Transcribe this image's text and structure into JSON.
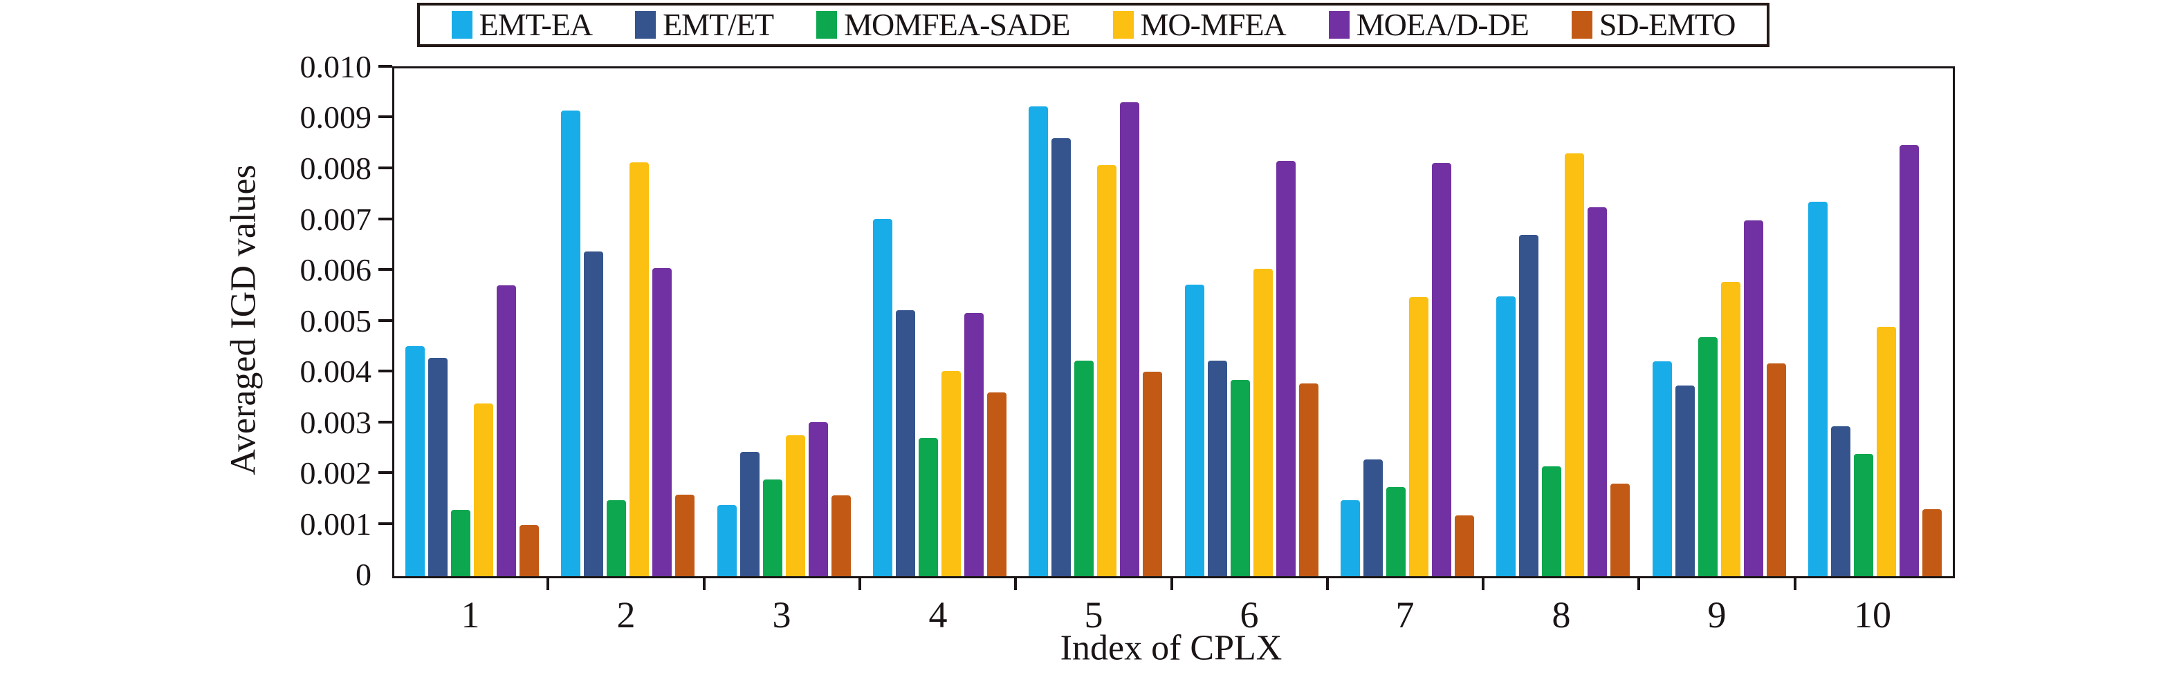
{
  "chart_data": {
    "type": "bar",
    "title": "",
    "xlabel": "Index of CPLX",
    "ylabel": "Averaged IGD values",
    "categories": [
      "1",
      "2",
      "3",
      "4",
      "5",
      "6",
      "7",
      "8",
      "9",
      "10"
    ],
    "series": [
      {
        "name": "EMT-EA",
        "color": "#18ACE8",
        "values": [
          0.00453,
          0.00917,
          0.0014,
          0.00704,
          0.00925,
          0.00574,
          0.0015,
          0.00551,
          0.00423,
          0.00738
        ]
      },
      {
        "name": "EMT/ET",
        "color": "#35548E",
        "values": [
          0.0043,
          0.0064,
          0.00245,
          0.00524,
          0.00862,
          0.00425,
          0.0023,
          0.00672,
          0.00375,
          0.00295
        ]
      },
      {
        "name": "MOMFEA-SADE",
        "color": "#0CA74F",
        "values": [
          0.0013,
          0.0015,
          0.0019,
          0.00272,
          0.00424,
          0.00387,
          0.00175,
          0.00217,
          0.00471,
          0.00241
        ]
      },
      {
        "name": "MO-MFEA",
        "color": "#FBC011",
        "values": [
          0.0034,
          0.00815,
          0.00277,
          0.00404,
          0.00809,
          0.00606,
          0.0055,
          0.00833,
          0.00579,
          0.00491
        ]
      },
      {
        "name": "MOEA/D-DE",
        "color": "#7231A2",
        "values": [
          0.00573,
          0.00607,
          0.00303,
          0.00518,
          0.00933,
          0.00818,
          0.00813,
          0.00727,
          0.00701,
          0.00849
        ]
      },
      {
        "name": "SD-EMTO",
        "color": "#C25A15",
        "values": [
          0.001,
          0.0016,
          0.00159,
          0.00362,
          0.00403,
          0.00379,
          0.0012,
          0.00182,
          0.00419,
          0.00132
        ]
      }
    ],
    "ylim": [
      0,
      0.01
    ],
    "ytick_step": 0.001,
    "ytick_labels": [
      "0",
      "0.001",
      "0.002",
      "0.003",
      "0.004",
      "0.005",
      "0.006",
      "0.007",
      "0.008",
      "0.009",
      "0.010"
    ],
    "grid": false,
    "legend_position": "top-center"
  },
  "colors": {
    "axis": "#1a1414",
    "legend_border": "#231815",
    "background": "#ffffff"
  }
}
